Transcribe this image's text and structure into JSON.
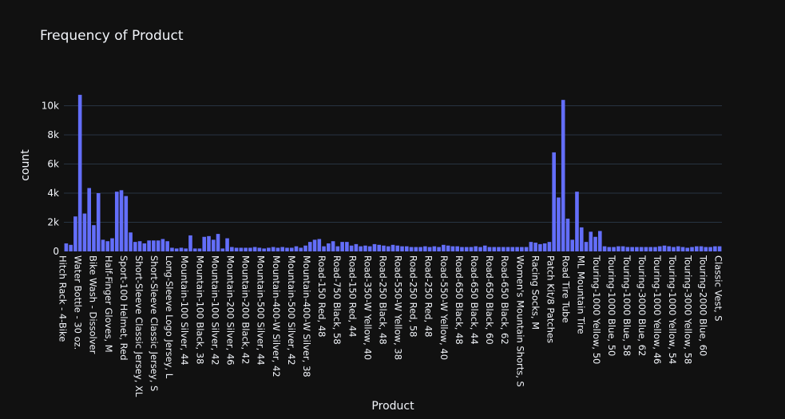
{
  "chart_data": {
    "type": "bar",
    "title": "Frequency of Product",
    "xlabel": "Product",
    "ylabel": "count",
    "ylim": [
      0,
      12000
    ],
    "yticks": [
      0,
      2000,
      4000,
      6000,
      8000,
      10000
    ],
    "ytick_labels": [
      "0",
      "2k",
      "4k",
      "6k",
      "8k",
      "10k"
    ],
    "grid": true,
    "legend": "none",
    "bar_color": "#636efa",
    "background": "#111111",
    "xtick_labels": [
      "Hitch Rack - 4-Bike",
      "Water Bottle - 30 oz.",
      "Bike Wash - Dissolver",
      "Half-Finger Gloves, M",
      "Sport-100 Helmet, Red",
      "Short-Sleeve Classic Jersey, XL",
      "Short-Sleeve Classic Jersey, S",
      "Long-Sleeve Logo Jersey, L",
      "Mountain-100 Silver, 44",
      "Mountain-100 Black, 38",
      "Mountain-100 Silver, 42",
      "Mountain-200 Silver, 46",
      "Mountain-200 Black, 42",
      "Mountain-500 Silver, 44",
      "Mountain-400-W Silver, 42",
      "Mountain-500 Silver, 42",
      "Mountain-400-W Silver, 38",
      "Road-150 Red, 48",
      "Road-750 Black, 58",
      "Road-150 Red, 44",
      "Road-350-W Yellow, 40",
      "Road-250 Black, 48",
      "Road-550-W Yellow, 38",
      "Road-250 Red, 58",
      "Road-250 Red, 48",
      "Road-550-W Yellow, 40",
      "Road-650 Black, 48",
      "Road-650 Black, 44",
      "Road-650 Black, 60",
      "Road-650 Black, 62",
      "Women's Mountain Shorts, S",
      "Racing Socks, M",
      "Patch Kit/8 Patches",
      "Road Tire Tube",
      "ML Mountain Tire",
      "Touring-1000 Yellow, 50",
      "Touring-1000 Blue, 50",
      "Touring-1000 Blue, 58",
      "Touring-3000 Blue, 62",
      "Touring-1000 Yellow, 46",
      "Touring-1000 Yellow, 54",
      "Touring-3000 Yellow, 58",
      "Touring-2000 Blue, 60",
      "Classic Vest, S"
    ],
    "values": [
      550,
      450,
      2400,
      10750,
      2600,
      4350,
      1800,
      4000,
      800,
      700,
      900,
      4100,
      4200,
      3800,
      1300,
      650,
      700,
      550,
      750,
      750,
      750,
      850,
      700,
      250,
      200,
      250,
      200,
      1100,
      200,
      200,
      1000,
      1050,
      800,
      1200,
      200,
      900,
      300,
      250,
      250,
      250,
      250,
      300,
      250,
      200,
      250,
      300,
      250,
      300,
      250,
      250,
      350,
      250,
      400,
      650,
      800,
      850,
      350,
      550,
      700,
      350,
      650,
      650,
      400,
      500,
      350,
      400,
      350,
      500,
      450,
      400,
      350,
      450,
      400,
      350,
      350,
      300,
      300,
      300,
      350,
      300,
      350,
      300,
      450,
      400,
      350,
      350,
      300,
      300,
      300,
      350,
      300,
      400,
      300,
      300,
      300,
      300,
      300,
      300,
      300,
      300,
      300,
      650,
      600,
      500,
      550,
      650,
      6800,
      3700,
      10400,
      2250,
      800,
      4100,
      1650,
      650,
      1350,
      1000,
      1400,
      350,
      300,
      300,
      350,
      350,
      300,
      300,
      300,
      300,
      300,
      300,
      300,
      350,
      400,
      350,
      300,
      350,
      300,
      250,
      300,
      350,
      350,
      300,
      300,
      350,
      350
    ]
  }
}
